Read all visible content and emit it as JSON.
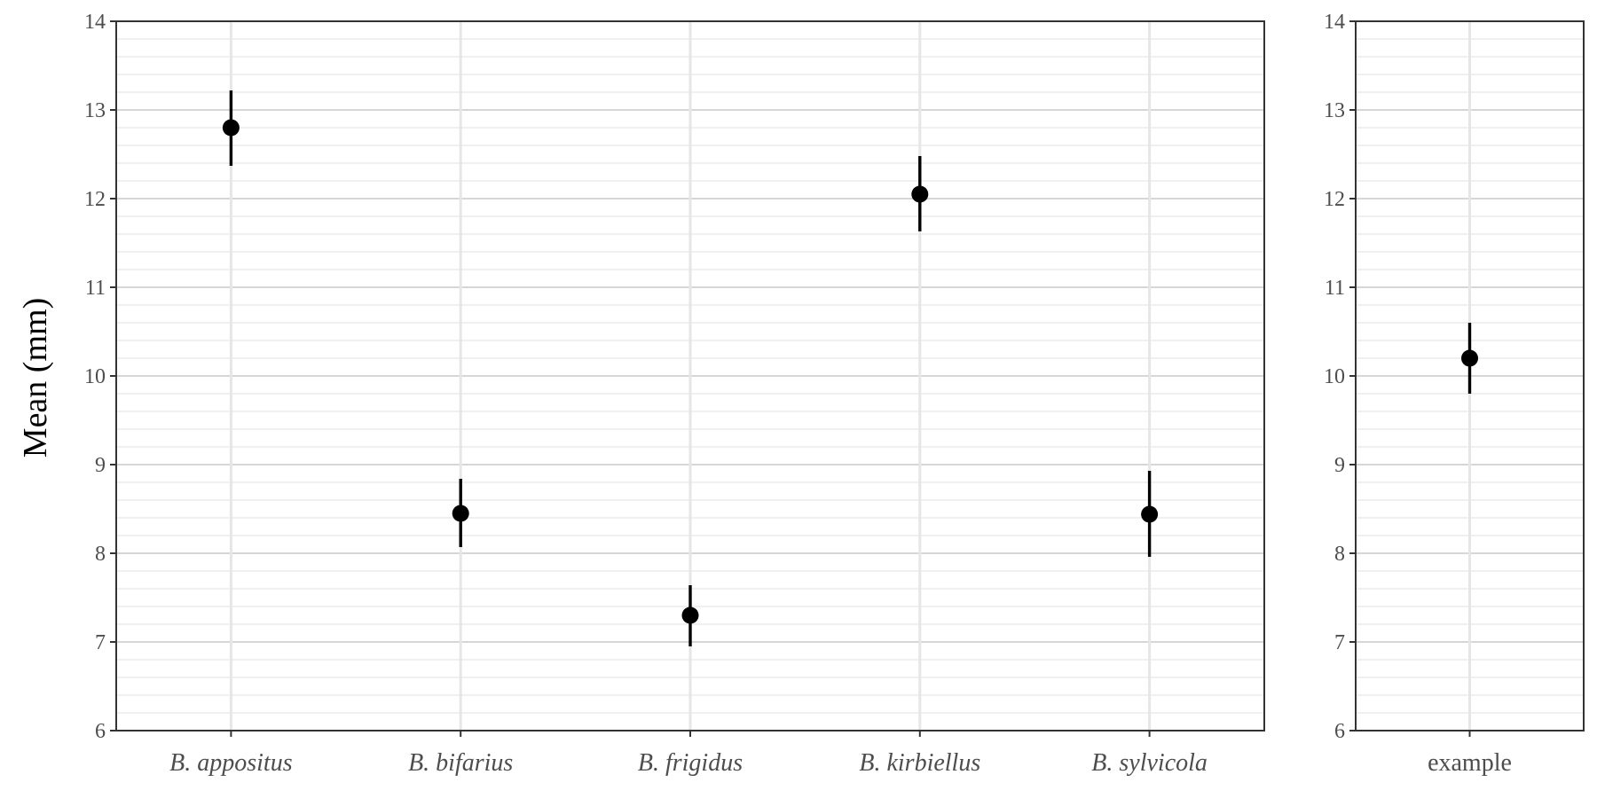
{
  "chart_data": [
    {
      "type": "scatter",
      "title": "",
      "xlabel": "",
      "ylabel": "Mean (mm)",
      "ylim": [
        6,
        14
      ],
      "yticks": [
        6,
        7,
        8,
        9,
        10,
        11,
        12,
        13,
        14
      ],
      "grid": true,
      "minor_grid_step": 0.2,
      "italic_categories": true,
      "categories": [
        "B. appositus",
        "B. bifarius",
        "B. frigidus",
        "B. kirbiellus",
        "B. sylvicola"
      ],
      "values": [
        12.8,
        8.45,
        7.3,
        12.05,
        8.44
      ],
      "error_low": [
        12.37,
        8.07,
        6.95,
        11.63,
        7.96
      ],
      "error_high": [
        13.22,
        8.84,
        7.64,
        12.48,
        8.93
      ]
    },
    {
      "type": "scatter",
      "title": "",
      "xlabel": "",
      "ylabel": "",
      "ylim": [
        6,
        14
      ],
      "yticks": [
        6,
        7,
        8,
        9,
        10,
        11,
        12,
        13,
        14
      ],
      "grid": true,
      "minor_grid_step": 0.2,
      "italic_categories": false,
      "categories": [
        "example"
      ],
      "values": [
        10.2
      ],
      "error_low": [
        9.8
      ],
      "error_high": [
        10.6
      ]
    }
  ],
  "colors": {
    "point": "#000000",
    "errorbar": "#000000",
    "panel_border": "#333333",
    "major_grid": "#c8c8c8",
    "minor_grid": "#e6e6e6",
    "vertical_grid": "#e6e6e6",
    "tick_label": "#4d4d4d"
  }
}
